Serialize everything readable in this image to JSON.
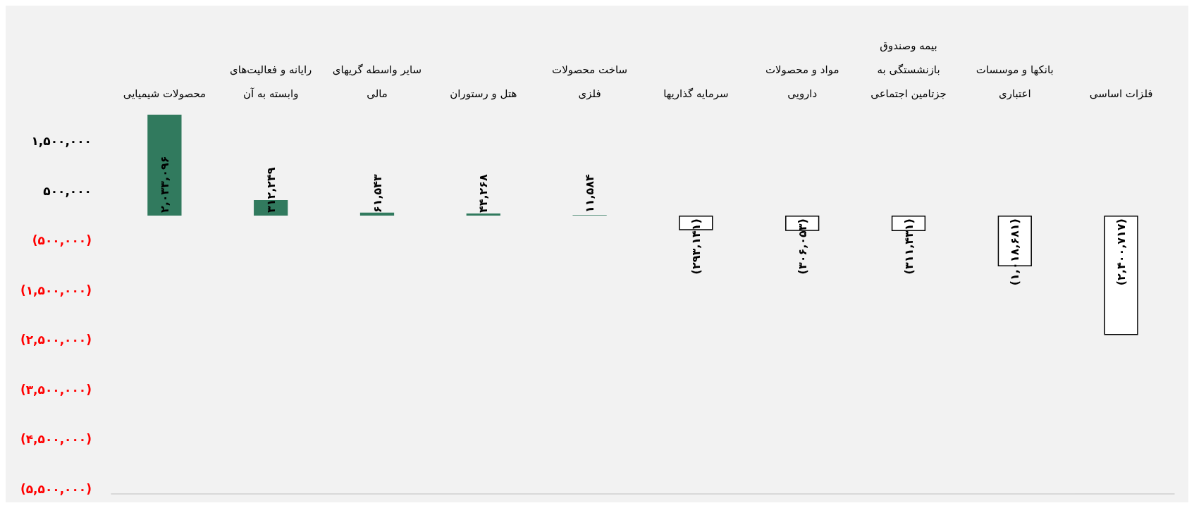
{
  "chart_data": {
    "type": "bar",
    "categories": [
      "محصولات شیمیایی",
      "رایانه و فعالیت‌های\nوابسته به آن",
      "سایر واسطه گریهای\nمالی",
      "هتل و رستوران",
      "ساخت محصولات\nفلزی",
      "سرمایه گذاریها",
      "مواد و محصولات\nدارویی",
      "بیمه وصندوق\nبازنشستگی به\nجزتامین اجتماعی",
      "بانکها و موسسات\nاعتباری",
      "فلزات اساسی"
    ],
    "values": [
      2033096,
      312249,
      61543,
      44268,
      11584,
      -293141,
      -306053,
      -311431,
      -1018681,
      -2400717
    ],
    "colors": [
      "#317a5e",
      "#317a5e",
      "#317a5e",
      "#317a5e",
      "#317a5e",
      "#ffffff",
      "#ffffff",
      "#ffffff",
      "#ffffff",
      "#ffffff"
    ],
    "value_labels": [
      "۲,۰۳۳,۰۹۶",
      "۳۱۲,۲۴۹",
      "۶۱,۵۴۳",
      "۴۴,۲۶۸",
      "۱۱,۵۸۴",
      "(۲۹۳,۱۴۱)",
      "(۳۰۶,۰۵۳)",
      "(۳۱۱,۴۳۱)",
      "(۱,۰۱۸,۶۸۱)",
      "(۲,۴۰۰,۷۱۷)"
    ],
    "ylim": [
      -5600000,
      2100000
    ],
    "yticks": [
      {
        "value": 1500000,
        "label": "۱,۵۰۰,۰۰۰"
      },
      {
        "value": 500000,
        "label": "۵۰۰,۰۰۰"
      },
      {
        "value": -500000,
        "label": "(۵۰۰,۰۰۰)"
      },
      {
        "value": -1500000,
        "label": "(۱,۵۰۰,۰۰۰)"
      },
      {
        "value": -2500000,
        "label": "(۲,۵۰۰,۰۰۰)"
      },
      {
        "value": -3500000,
        "label": "(۳,۵۰۰,۰۰۰)"
      },
      {
        "value": -4500000,
        "label": "(۴,۵۰۰,۰۰۰)"
      },
      {
        "value": -5500000,
        "label": "(۵,۵۰۰,۰۰۰)"
      }
    ],
    "grid": false
  }
}
